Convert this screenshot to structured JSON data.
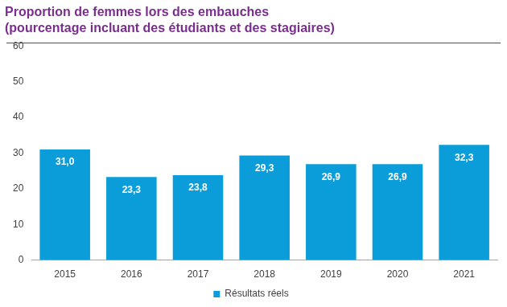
{
  "chart_data": {
    "type": "bar",
    "title": "Proportion de femmes lors des embauches",
    "subtitle": "(pourcentage incluant des étudiants et des stagiaires)",
    "categories": [
      "2015",
      "2016",
      "2017",
      "2018",
      "2019",
      "2020",
      "2021"
    ],
    "series": [
      {
        "name": "Résultats réels",
        "color": "#0a9dd9",
        "values": [
          31.0,
          23.3,
          23.8,
          29.3,
          26.9,
          26.9,
          32.3
        ],
        "value_labels": [
          "31,0",
          "23,3",
          "23,8",
          "29,3",
          "26,9",
          "26,9",
          "32,3"
        ]
      }
    ],
    "ylim": [
      0,
      60
    ],
    "yticks": [
      0,
      10,
      20,
      30,
      40,
      50,
      60
    ],
    "grid": false,
    "legend": "bottom",
    "data_labels": true
  }
}
